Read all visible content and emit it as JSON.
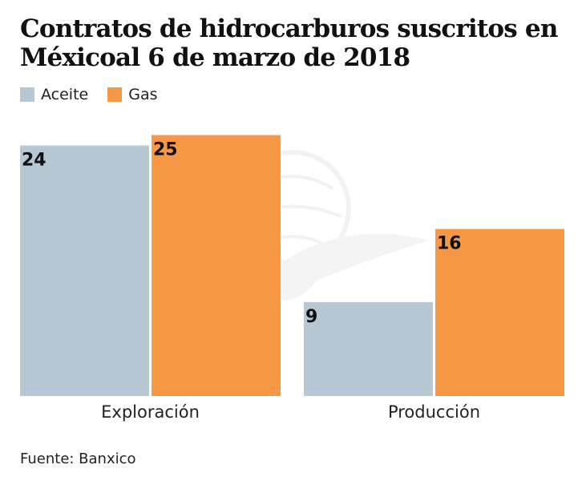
{
  "chart_data": {
    "type": "bar",
    "title": "Contratos de hidrocarburos suscritos en Méxicoal 6 de marzo de 2018",
    "categories": [
      "Exploración",
      "Producción"
    ],
    "series": [
      {
        "name": "Aceite",
        "color": "#b6c8d3",
        "values": [
          24,
          9
        ]
      },
      {
        "name": "Gas",
        "color": "#f79847",
        "values": [
          25,
          16
        ]
      }
    ],
    "xlabel": "",
    "ylabel": "",
    "ylim": [
      0,
      25
    ],
    "grid": false,
    "legend_position": "top-left",
    "data_labels": true
  },
  "title": "Contratos de hidrocarburos suscritos en Méxicoal 6 de marzo de 2018",
  "legend": [
    {
      "label": "Aceite",
      "color": "#b6c8d3"
    },
    {
      "label": "Gas",
      "color": "#f79847"
    }
  ],
  "source": "Fuente: Banxico"
}
